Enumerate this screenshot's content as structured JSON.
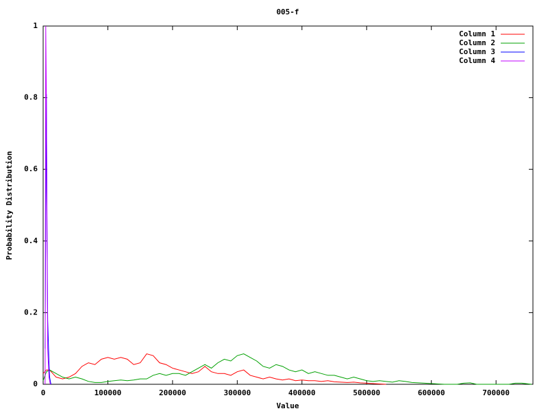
{
  "chart_data": {
    "type": "line",
    "title": "005-f",
    "x_label": "Value",
    "y_label": "Probability Distribution",
    "xlim": [
      0,
      757000
    ],
    "ylim": [
      0,
      1
    ],
    "xticks": [
      0,
      100000,
      200000,
      300000,
      400000,
      500000,
      600000,
      700000
    ],
    "yticks": [
      0,
      0.2,
      0.4,
      0.6,
      0.8,
      1
    ],
    "legend": "top-right",
    "series": [
      {
        "name": "Column 1",
        "color": "#ff0000",
        "x": [
          0,
          5000,
          10000,
          20000,
          30000,
          40000,
          50000,
          60000,
          70000,
          80000,
          90000,
          100000,
          110000,
          120000,
          130000,
          140000,
          150000,
          160000,
          170000,
          180000,
          190000,
          200000,
          210000,
          220000,
          230000,
          240000,
          250000,
          260000,
          270000,
          280000,
          290000,
          300000,
          310000,
          320000,
          330000,
          340000,
          350000,
          360000,
          370000,
          380000,
          390000,
          400000,
          410000,
          420000,
          430000,
          440000,
          450000,
          460000,
          470000,
          480000,
          490000,
          500000,
          510000,
          520000,
          530000
        ],
        "values": [
          0.03,
          0.04,
          0.04,
          0.02,
          0.015,
          0.02,
          0.03,
          0.05,
          0.06,
          0.055,
          0.07,
          0.075,
          0.07,
          0.075,
          0.07,
          0.055,
          0.06,
          0.085,
          0.08,
          0.06,
          0.055,
          0.045,
          0.04,
          0.035,
          0.03,
          0.035,
          0.05,
          0.035,
          0.03,
          0.03,
          0.025,
          0.035,
          0.04,
          0.025,
          0.02,
          0.015,
          0.02,
          0.015,
          0.012,
          0.015,
          0.01,
          0.012,
          0.01,
          0.01,
          0.008,
          0.01,
          0.007,
          0.006,
          0.005,
          0.006,
          0.004,
          0.003,
          0.002,
          0.001,
          0
        ]
      },
      {
        "name": "Column 2",
        "color": "#00a000",
        "x": [
          0,
          5000,
          10000,
          20000,
          30000,
          40000,
          50000,
          60000,
          70000,
          80000,
          90000,
          100000,
          110000,
          120000,
          130000,
          140000,
          150000,
          160000,
          170000,
          180000,
          190000,
          200000,
          210000,
          220000,
          230000,
          240000,
          250000,
          260000,
          270000,
          280000,
          290000,
          300000,
          310000,
          320000,
          330000,
          340000,
          350000,
          360000,
          370000,
          380000,
          390000,
          400000,
          410000,
          420000,
          430000,
          440000,
          450000,
          460000,
          470000,
          480000,
          490000,
          500000,
          510000,
          520000,
          530000,
          540000,
          550000,
          560000,
          570000,
          580000,
          590000,
          600000,
          610000,
          620000,
          640000,
          650000,
          660000,
          670000,
          720000,
          730000,
          740000,
          755000
        ],
        "values": [
          0.01,
          0.035,
          0.04,
          0.03,
          0.02,
          0.015,
          0.02,
          0.015,
          0.008,
          0.005,
          0.005,
          0.008,
          0.01,
          0.012,
          0.01,
          0.012,
          0.015,
          0.015,
          0.025,
          0.03,
          0.025,
          0.03,
          0.03,
          0.025,
          0.035,
          0.045,
          0.055,
          0.045,
          0.06,
          0.07,
          0.065,
          0.08,
          0.085,
          0.075,
          0.065,
          0.05,
          0.045,
          0.055,
          0.05,
          0.04,
          0.035,
          0.04,
          0.03,
          0.035,
          0.03,
          0.025,
          0.025,
          0.02,
          0.015,
          0.02,
          0.015,
          0.01,
          0.008,
          0.01,
          0.008,
          0.006,
          0.01,
          0.008,
          0.005,
          0.004,
          0.003,
          0.002,
          0.001,
          0,
          0,
          0.003,
          0.004,
          0,
          0,
          0.003,
          0.003,
          0
        ]
      },
      {
        "name": "Column 3",
        "color": "#0000ff",
        "x": [
          3000,
          5000,
          6000,
          7000,
          9000,
          10000,
          12000
        ],
        "values": [
          0.1,
          0.81,
          0.43,
          0.18,
          0.06,
          0.02,
          0
        ]
      },
      {
        "name": "Column 4",
        "color": "#c000ff",
        "x": [
          3000,
          4000,
          5000,
          6000,
          7000,
          9000,
          11000
        ],
        "values": [
          0,
          1,
          0.8,
          0.4,
          0.1,
          0.02,
          0
        ]
      }
    ]
  }
}
